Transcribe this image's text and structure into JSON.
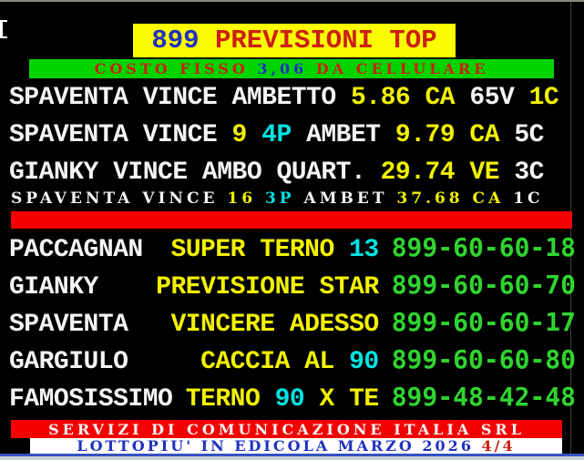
{
  "colors": {
    "yellow-bg": "#fcfc00",
    "green-bg": "#00d400",
    "red-bar": "#f40000",
    "gray-line": "#8a8a80",
    "bar-blue": "#3452c4",
    "bottom-gray": "#ccd2d8",
    "text-white": "#f4f4f4",
    "text-yellow": "#f2f200",
    "text-cyan": "#00e4e4",
    "text-green": "#30d430",
    "text-red": "#cc2012",
    "text-blue": "#2030c0"
  },
  "header": {
    "number": "899 ",
    "title": "PREVISIONI TOP"
  },
  "cost_banner": {
    "prefix": "COSTO FISSO ",
    "price": "3,06",
    "suffix": " DA CELLULARE"
  },
  "predictions": {
    "rows": [
      {
        "segments": [
          {
            "t": "SPAVENTA VINCE AMBETTO ",
            "c": "white"
          },
          {
            "t": "5.86 CA ",
            "c": "yellow"
          },
          {
            "t": "65V ",
            "c": "white"
          },
          {
            "t": "1C",
            "c": "yellow"
          }
        ]
      },
      {
        "segments": [
          {
            "t": "SPAVENTA VINCE ",
            "c": "white"
          },
          {
            "t": "9 ",
            "c": "yellow"
          },
          {
            "t": "4P ",
            "c": "cyan"
          },
          {
            "t": "AMBET ",
            "c": "white"
          },
          {
            "t": "9.79 CA ",
            "c": "yellow"
          },
          {
            "t": "5C",
            "c": "white"
          }
        ]
      },
      {
        "segments": [
          {
            "t": "GIANKY VINCE AMBO QUART. ",
            "c": "white"
          },
          {
            "t": "29.74 VE ",
            "c": "yellow"
          },
          {
            "t": "3C",
            "c": "white"
          }
        ]
      }
    ],
    "highlight": {
      "segments": [
        {
          "t": "SPAVENTA VINCE ",
          "c": "white"
        },
        {
          "t": "16 ",
          "c": "yellow"
        },
        {
          "t": "3P ",
          "c": "cyan"
        },
        {
          "t": "AMBET ",
          "c": "white"
        },
        {
          "t": "37.68 CA ",
          "c": "yellow"
        },
        {
          "t": "1C",
          "c": "white"
        }
      ]
    }
  },
  "services": [
    {
      "name": "PACCAGNAN",
      "middle": [
        {
          "t": "SUPER TERNO ",
          "c": "yellow"
        },
        {
          "t": "13",
          "c": "cyan"
        }
      ],
      "phone": "899-60-60-18"
    },
    {
      "name": "GIANKY",
      "middle": [
        {
          "t": "PREVISIONE STAR",
          "c": "yellow"
        }
      ],
      "phone": "899-60-60-70"
    },
    {
      "name": "SPAVENTA",
      "middle": [
        {
          "t": "VINCERE ADESSO",
          "c": "yellow"
        }
      ],
      "phone": "899-60-60-17"
    },
    {
      "name": "GARGIULO",
      "middle": [
        {
          "t": "CACCIA AL ",
          "c": "yellow"
        },
        {
          "t": "90",
          "c": "cyan"
        }
      ],
      "phone": "899-60-60-80"
    },
    {
      "name": "FAMOSISSIMO",
      "middle": [
        {
          "t": "TERNO ",
          "c": "yellow"
        },
        {
          "t": "90",
          "c": "cyan"
        },
        {
          "t": " X TE",
          "c": "yellow"
        }
      ],
      "phone": "899-48-42-48"
    }
  ],
  "footer": {
    "company": "SERVIZI DI COMUNICAZIONE ITALIA SRL",
    "news_text": "LOTTOPIU' IN EDICOLA MARZO 2026 ",
    "page": "4/4"
  }
}
